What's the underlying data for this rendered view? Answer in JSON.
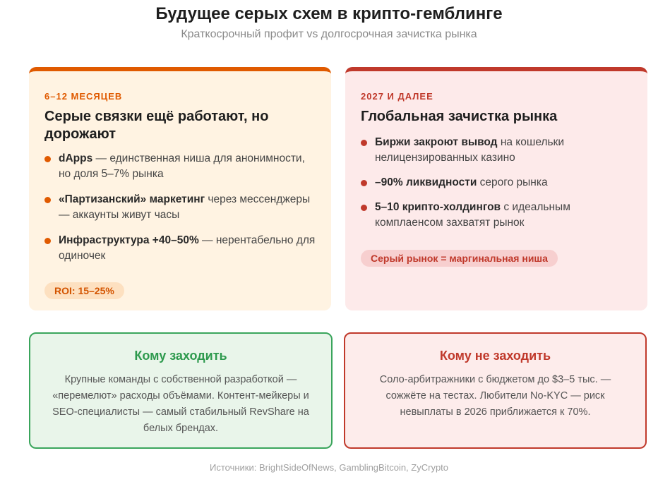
{
  "header": {
    "title": "Будущее серых схем в крипто-гемблинге",
    "subtitle": "Краткосрочный профит vs долгосрочная зачистка рынка"
  },
  "left_card": {
    "eyebrow": "6–12 МЕСЯЦЕВ",
    "title": "Серые связки ещё работают, но дорожают",
    "points": [
      {
        "bold": "dApps",
        "text": " — единственная ниша для анонимности, но доля 5–7% рынка"
      },
      {
        "bold": "«Партизанский» маркетинг",
        "text": " через мессенджеры — аккаунты живут часы"
      },
      {
        "bold": "Инфраструктура +40–50%",
        "text": " — нерентабельно для одиночек"
      }
    ],
    "badge": "ROI: 15–25%",
    "accent": "#e05a00"
  },
  "right_card": {
    "eyebrow": "2027 И ДАЛЕЕ",
    "title": "Глобальная зачистка рынка",
    "points": [
      {
        "bold": "Биржи закроют вывод",
        "text": " на кошельки нелицензированных казино"
      },
      {
        "bold": "–90% ликвидности",
        "text": " серого рынка"
      },
      {
        "bold": "5–10 крипто-холдингов",
        "text": " с идеальным комплаенсом захватят рынок"
      }
    ],
    "badge": "Серый рынок = маргинальная ниша",
    "accent": "#c0392b"
  },
  "go_card": {
    "title": "Кому заходить",
    "text": "Крупные команды с собственной разработкой — «перемелют» расходы объёмами. Контент-мейкеры и SEO-специалисты — самый стабильный RevShare на белых брендах.",
    "accent": "#3aa55c"
  },
  "nogo_card": {
    "title": "Кому не заходить",
    "text": "Соло-арбитражники с бюджетом до $3–5 тыс. — сожжёте на тестах. Любители No-KYC — риск невыплаты в 2026 приближается к 70%.",
    "accent": "#c0392b"
  },
  "footer": {
    "sources": "Источники: BrightSideOfNews, GamblingBitcoin, ZyCrypto"
  }
}
